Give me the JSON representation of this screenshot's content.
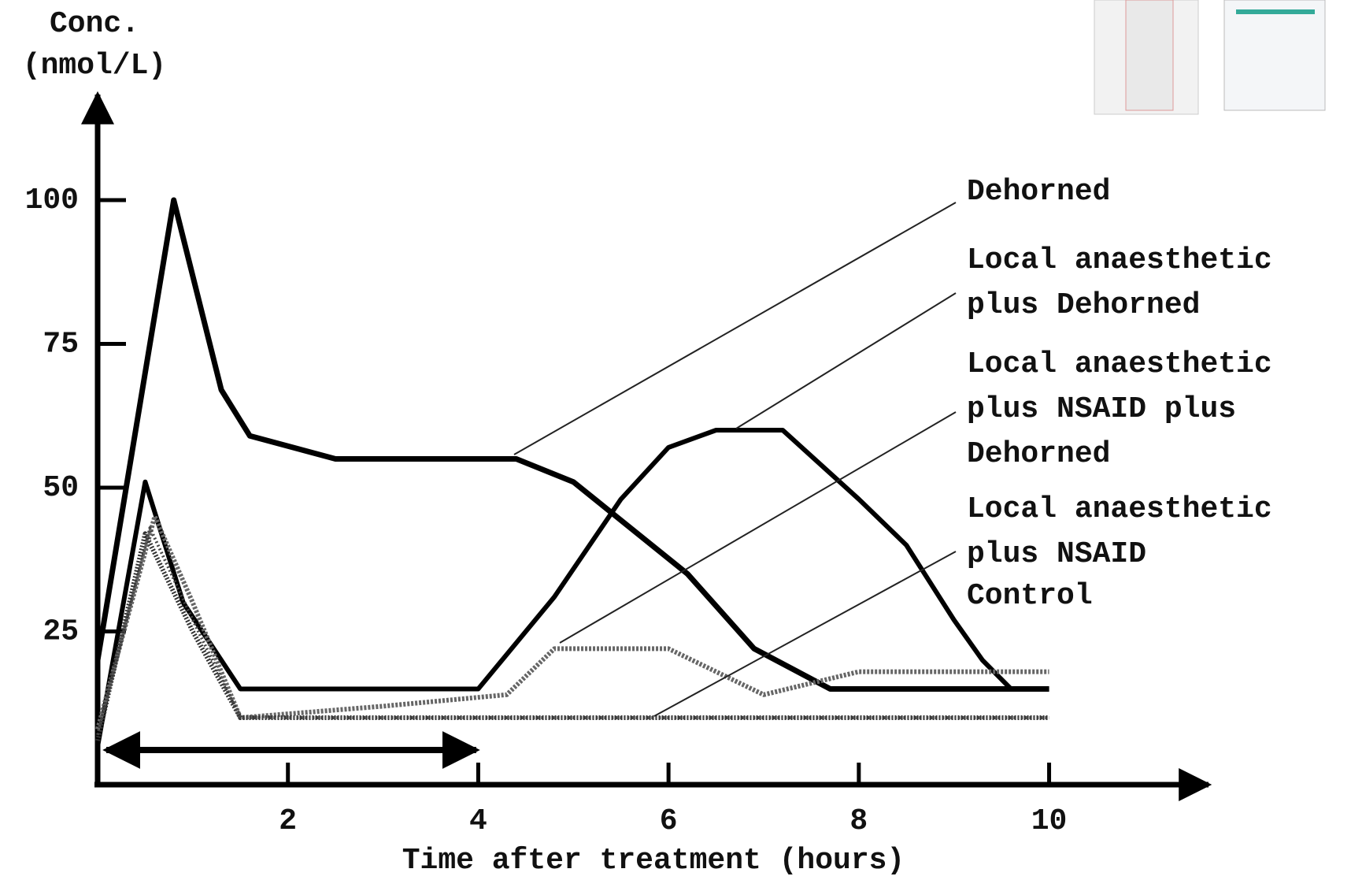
{
  "chart_data": {
    "type": "line",
    "ylabel": [
      "Conc.",
      "(nmol/L)"
    ],
    "xlabel": "Time after treatment (hours)",
    "xlim": [
      0,
      11.7
    ],
    "ylim": [
      0,
      120
    ],
    "xticks": [
      2,
      4,
      6,
      8,
      10
    ],
    "yticks": [
      25,
      50,
      75,
      100
    ],
    "series": [
      {
        "name": "Dehorned",
        "color": "#000000",
        "x": [
          0,
          0.8,
          1.3,
          1.6,
          2.5,
          4.4,
          5,
          6.2,
          6.9,
          7.7,
          10
        ],
        "values": [
          20,
          100,
          67,
          59,
          55,
          55,
          51,
          35,
          22,
          15,
          15
        ]
      },
      {
        "name": "Local anaesthetic plus Dehorned",
        "color": "#000000",
        "x": [
          0,
          0.5,
          0.9,
          1.5,
          4,
          4.8,
          5.5,
          6,
          6.5,
          7.2,
          8,
          8.5,
          9,
          9.3,
          9.6,
          10
        ],
        "values": [
          5,
          51,
          30,
          15,
          15,
          31,
          48,
          57,
          60,
          60,
          48,
          40,
          27,
          20,
          15,
          15
        ]
      },
      {
        "name": "Local anaesthetic plus NSAID plus Dehorned",
        "color": "#666666",
        "x": [
          0,
          0.6,
          1,
          1.5,
          3,
          4.3,
          4.8,
          6,
          7,
          8,
          10
        ],
        "values": [
          8,
          45,
          30,
          10,
          12,
          14,
          22,
          22,
          14,
          18,
          18
        ]
      },
      {
        "name": "Local anaesthetic plus NSAID",
        "color": "#333333",
        "x": [
          0,
          0.5,
          1,
          1.5,
          10
        ],
        "values": [
          6,
          42,
          25,
          10,
          10
        ]
      },
      {
        "name": "Control",
        "color": "#444444",
        "x": [
          0,
          0.55,
          1,
          1.5,
          10
        ],
        "values": [
          7,
          43,
          27,
          10,
          10
        ]
      }
    ]
  }
}
